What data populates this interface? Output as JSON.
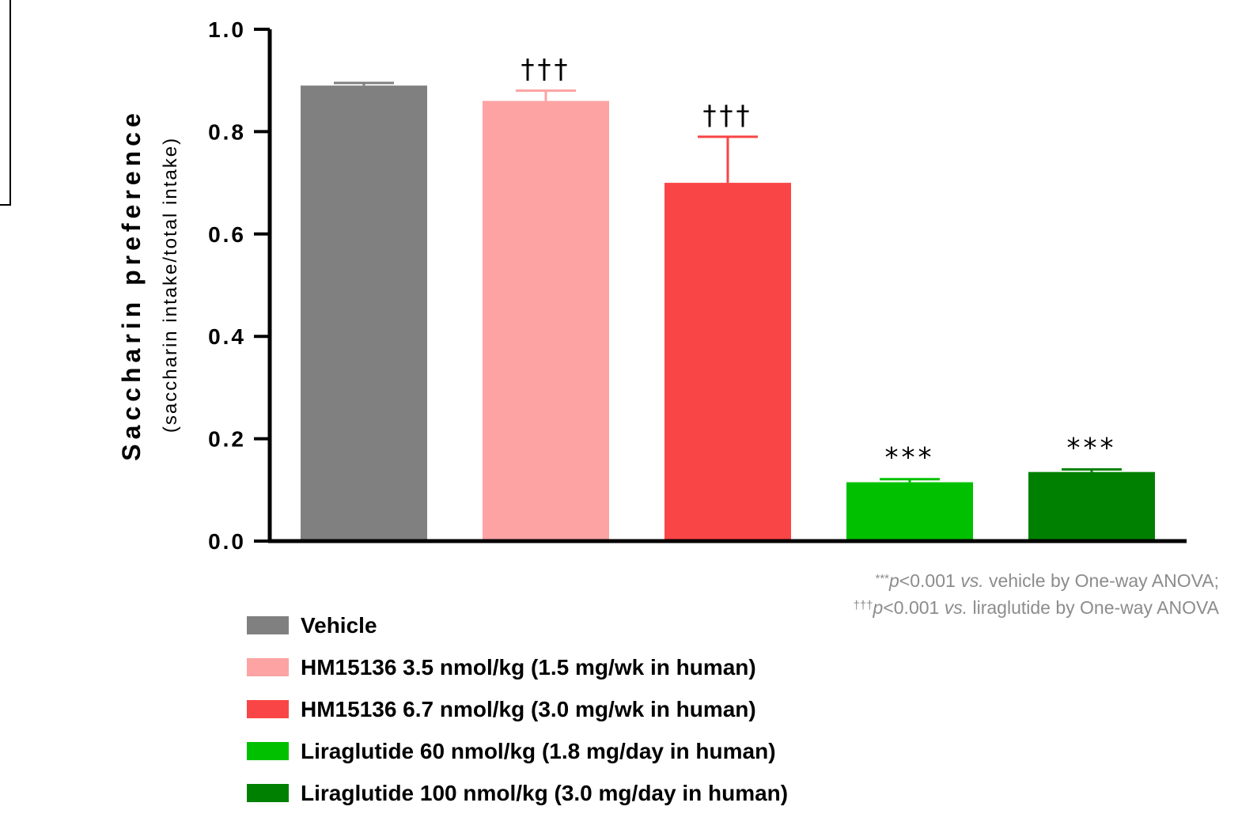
{
  "chart_data": {
    "type": "bar",
    "ylabel": "Saccharin preference",
    "ylabel_sub": "(saccharin intake/total intake)",
    "ylim": [
      0,
      1.0
    ],
    "yticks": [
      "0.0",
      "0.2",
      "0.4",
      "0.6",
      "0.8",
      "1.0"
    ],
    "grid": false,
    "categories": [
      "Vehicle",
      "HM15136 3.5 nmol/kg (1.5 mg/wk in human)",
      "HM15136 6.7 nmol/kg (3.0 mg/wk in human)",
      "Liraglutide 60 nmol/kg (1.8 mg/day in human)",
      "Liraglutide 100 nmol/kg (3.0 mg/day in human)"
    ],
    "values": [
      0.89,
      0.86,
      0.7,
      0.115,
      0.135
    ],
    "errors": [
      0.005,
      0.02,
      0.09,
      0.006,
      0.005
    ],
    "colors": [
      "#808080",
      "#fda3a3",
      "#f94545",
      "#00c000",
      "#008000"
    ],
    "annotations": [
      "",
      "†††",
      "†††",
      "***",
      "***"
    ],
    "legend_position": "bottom-left"
  },
  "footnote": {
    "line1_mark": "***",
    "line1_p": "p",
    "line1_a": "<0.001 ",
    "line1_vs": "vs.",
    "line1_b": " vehicle by One-way ANOVA;",
    "line2_mark": "†††",
    "line2_p": "p",
    "line2_a": "<0.001 ",
    "line2_vs": "vs.",
    "line2_b": " liraglutide by One-way ANOVA"
  }
}
